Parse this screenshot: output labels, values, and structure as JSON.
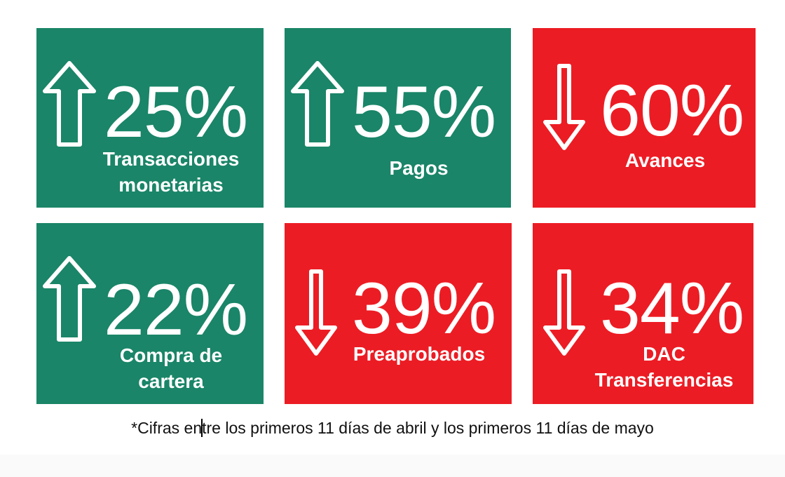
{
  "colors": {
    "increase": "#1a8568",
    "decrease": "#ec1c24",
    "text": "#ffffff"
  },
  "tiles": [
    {
      "percent": "25%",
      "label_line1": "Transacciones",
      "label_line2": "monetarias",
      "direction": "up",
      "icon": "arrow-up-icon"
    },
    {
      "percent": "55%",
      "label_line1": "Pagos",
      "direction": "up",
      "icon": "arrow-up-icon"
    },
    {
      "percent": "60%",
      "label_line1": "Avances",
      "direction": "down",
      "icon": "arrow-down-icon"
    },
    {
      "percent": "22%",
      "label_line1": "Compra de",
      "label_line2": "cartera",
      "direction": "up",
      "icon": "arrow-up-icon"
    },
    {
      "percent": "39%",
      "label_line1": "Preaprobados",
      "direction": "down",
      "icon": "arrow-down-icon"
    },
    {
      "percent": "34%",
      "label_line1": "DAC",
      "label_line2": "Transferencias",
      "direction": "down",
      "icon": "arrow-down-icon"
    }
  ],
  "caption": {
    "before_cursor": "*Cifras en",
    "after_cursor": "tre los primeros 11 días de abril y los primeros 11 días de mayo"
  }
}
